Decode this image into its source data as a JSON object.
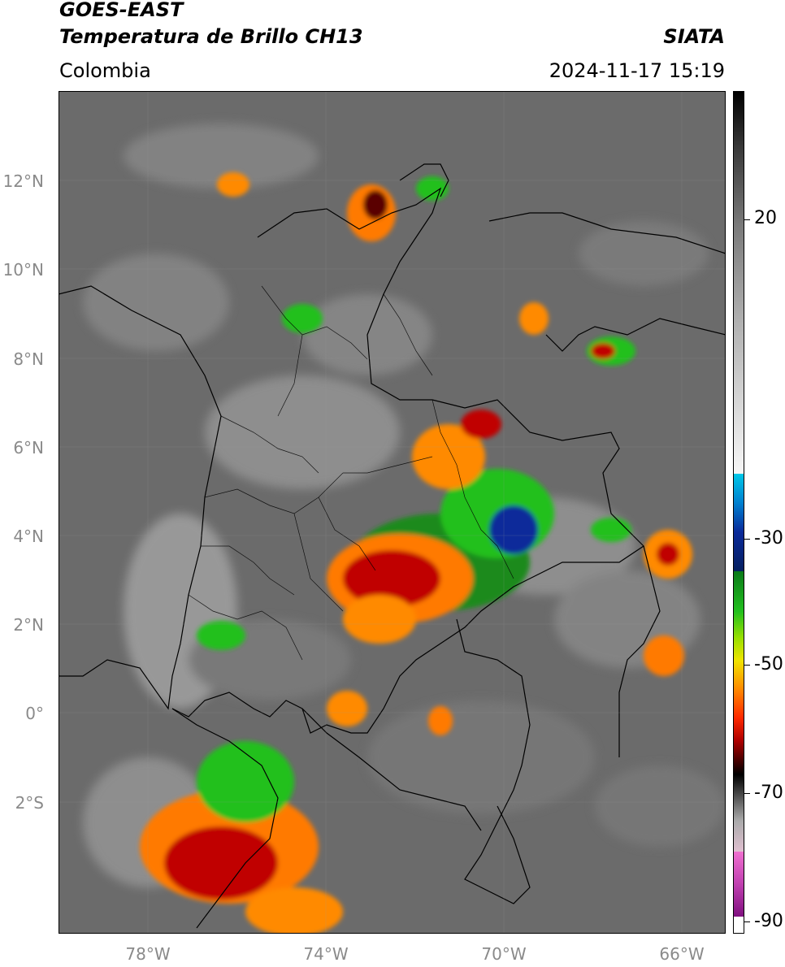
{
  "header": {
    "satellite": "GOES-EAST",
    "product": "Temperatura de Brillo CH13",
    "organization": "SIATA",
    "region": "Colombia",
    "datetime": "2024-11-17 15:19"
  },
  "map": {
    "latitude_labels": [
      "12°N",
      "10°N",
      "8°N",
      "6°N",
      "4°N",
      "2°N",
      "0°",
      "2°S"
    ],
    "longitude_labels": [
      "78°W",
      "74°W",
      "70°W",
      "66°W"
    ],
    "gridlines": true,
    "colormap": {
      "tick_labels": [
        "20",
        "-30",
        "-50",
        "-70",
        "-90"
      ],
      "colors": {
        "warm_gray": "#6a6a6a",
        "light_gray": "#d8d8d8",
        "cyan": "#00b8e0",
        "blue": "#0a2a9a",
        "green": "#22c01e",
        "yellow": "#f0e400",
        "orange": "#ff8a00",
        "red": "#d80000",
        "dark_red": "#5a0000",
        "black": "#000000",
        "magenta": "#d040c0",
        "white": "#ffffff"
      }
    }
  }
}
